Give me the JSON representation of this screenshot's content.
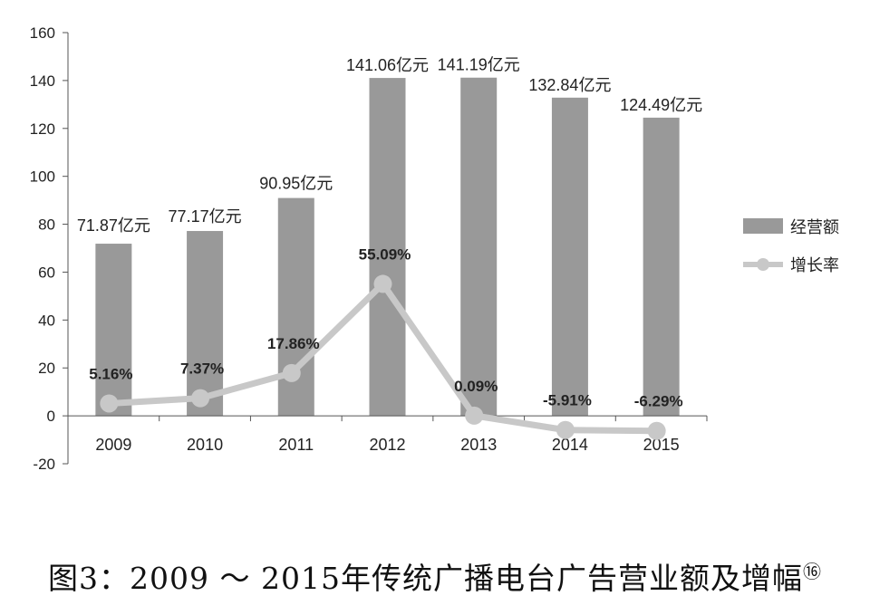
{
  "chart_data": {
    "type": "bar",
    "categories": [
      "2009",
      "2010",
      "2011",
      "2012",
      "2013",
      "2014",
      "2015"
    ],
    "series": [
      {
        "name": "经营额",
        "type": "bar",
        "values": [
          71.87,
          77.17,
          90.95,
          141.06,
          141.19,
          132.84,
          124.49
        ],
        "labels": [
          "71.87亿元",
          "77.17亿元",
          "90.95亿元",
          "141.06亿元",
          "141.19亿元",
          "132.84亿元",
          "124.49亿元"
        ]
      },
      {
        "name": "增长率",
        "type": "line",
        "values": [
          5.16,
          7.37,
          17.86,
          55.09,
          0.09,
          -5.91,
          -6.29
        ],
        "labels": [
          "5.16%",
          "7.37%",
          "17.86%",
          "55.09%",
          "0.09%",
          "-5.91%",
          "-6.29%"
        ]
      }
    ],
    "ylim": [
      -20,
      160
    ],
    "yticks": [
      -20,
      0,
      20,
      40,
      60,
      80,
      100,
      120,
      140,
      160
    ],
    "legend_position": "right",
    "grid": false,
    "colors": {
      "bar": "#999999",
      "line": "#c8c8c8"
    }
  },
  "caption": {
    "text": "图3：2009 ～ 2015年传统广播电台广告营业额及增幅",
    "footnote": "⑯"
  }
}
